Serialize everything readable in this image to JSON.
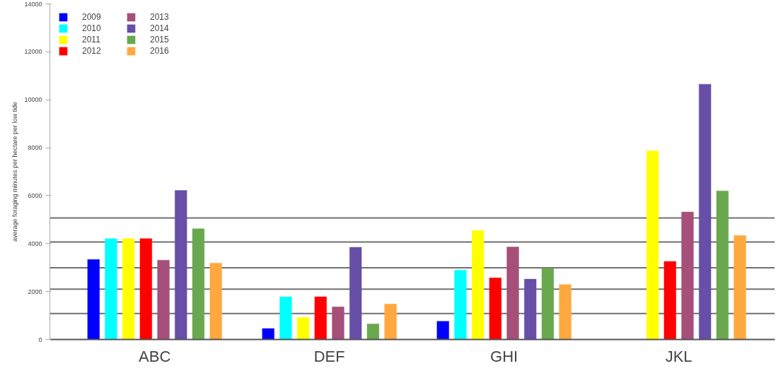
{
  "chart_data": {
    "type": "bar",
    "ylabel": "average foraging minutes per hectare per low tide",
    "categories": [
      "ABC",
      "DEF",
      "GHI",
      "JKL"
    ],
    "series": [
      {
        "name": "2009",
        "color": "#0000ff",
        "values": [
          3340,
          460,
          760,
          null
        ]
      },
      {
        "name": "2010",
        "color": "#00ffff",
        "values": [
          4210,
          1780,
          2890,
          null
        ]
      },
      {
        "name": "2011",
        "color": "#ffff00",
        "values": [
          4210,
          920,
          4550,
          7870
        ]
      },
      {
        "name": "2012",
        "color": "#ff0000",
        "values": [
          4210,
          1780,
          2570,
          3260
        ]
      },
      {
        "name": "2013",
        "color": "#a54f79",
        "values": [
          3310,
          1360,
          3860,
          5320
        ]
      },
      {
        "name": "2014",
        "color": "#674ea7",
        "values": [
          6220,
          3850,
          2520,
          10650
        ]
      },
      {
        "name": "2015",
        "color": "#6aa84f",
        "values": [
          4620,
          650,
          2980,
          6200
        ]
      },
      {
        "name": "2016",
        "color": "#ffa83f",
        "values": [
          3180,
          1480,
          2290,
          4340
        ]
      }
    ],
    "ylim": [
      0,
      14000
    ],
    "yticks": [
      0,
      2000,
      4000,
      6000,
      8000,
      10000,
      12000,
      14000
    ],
    "ref_lines": [
      {
        "axis": "y",
        "value": 5070,
        "color": "#707070"
      },
      {
        "axis": "y",
        "value": 4070,
        "color": "#707070"
      },
      {
        "axis": "y",
        "value": 2990,
        "color": "#707070"
      },
      {
        "axis": "y",
        "value": 2100,
        "color": "#707070"
      },
      {
        "axis": "y",
        "value": 1080,
        "color": "#707070"
      }
    ],
    "grid": false,
    "legend": "top left"
  }
}
